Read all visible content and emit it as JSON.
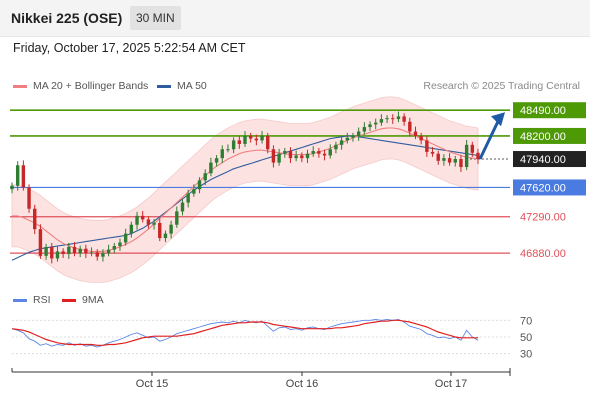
{
  "header": {
    "title": "Nikkei 225 (OSE)",
    "timeframe": "30 MIN"
  },
  "timestamp": "Friday, October 17, 2025 5:22:54 AM CET",
  "legend": {
    "ma20": "MA 20 + Bollinger Bands",
    "ma50": "MA 50",
    "copyright": "Research © 2025 Trading Central"
  },
  "rsi_legend": {
    "rsi": "RSI",
    "ma9": "9MA"
  },
  "colors": {
    "resistance": "#4e9a06",
    "current": "#222222",
    "support_blue": "#4a7be0",
    "support_red": "#e0505a",
    "bollinger_fill": "#fde2e2",
    "ma20": "#f08080",
    "ma50": "#2f5d9e",
    "candle_up": "#2e7d32",
    "candle_down": "#c62828",
    "arrow": "#1f5aa6"
  },
  "chart_data": [
    {
      "type": "candlestick",
      "x_ticks": [
        "Oct 15",
        "Oct 16",
        "Oct 17"
      ],
      "ylim": [
        46600,
        48650
      ],
      "levels": [
        {
          "value": 48490,
          "label": "48490.00",
          "kind": "resistance"
        },
        {
          "value": 48200,
          "label": "48200.00",
          "kind": "resistance"
        },
        {
          "value": 47940,
          "label": "47940.00",
          "kind": "current"
        },
        {
          "value": 47620,
          "label": "47620.00",
          "kind": "support_blue"
        },
        {
          "value": 47290,
          "label": "47290.00",
          "kind": "support_red"
        },
        {
          "value": 46880,
          "label": "46880.00",
          "kind": "support_red"
        }
      ],
      "close": [
        47640,
        47870,
        47620,
        47380,
        47150,
        46850,
        46950,
        46820,
        46900,
        46870,
        46950,
        46880,
        46930,
        46880,
        46890,
        46840,
        46880,
        46920,
        46960,
        47000,
        47100,
        47200,
        47300,
        47260,
        47200,
        47220,
        47050,
        47100,
        47200,
        47350,
        47450,
        47550,
        47600,
        47700,
        47780,
        47900,
        47950,
        48050,
        48050,
        48150,
        48110,
        48200,
        48170,
        48150,
        48200,
        48050,
        47900,
        48000,
        48030,
        47950,
        47980,
        47950,
        48000,
        48030,
        48000,
        47980,
        48050,
        48100,
        48150,
        48180,
        48200,
        48250,
        48300,
        48330,
        48350,
        48390,
        48400,
        48390,
        48420,
        48360,
        48250,
        48200,
        48150,
        48020,
        48000,
        47920,
        47950,
        47900,
        47940,
        47850,
        48100,
        48010,
        47940
      ],
      "ma20": [
        47300,
        47300,
        47280,
        47250,
        47220,
        47180,
        47130,
        47080,
        47030,
        46990,
        46960,
        46940,
        46920,
        46910,
        46900,
        46900,
        46900,
        46910,
        46930,
        46950,
        46980,
        47010,
        47050,
        47100,
        47150,
        47210,
        47270,
        47330,
        47390,
        47450,
        47510,
        47570,
        47630,
        47690,
        47750,
        47810,
        47860,
        47900,
        47940,
        47970,
        48000,
        48020,
        48030,
        48040,
        48040,
        48030,
        48020,
        48010,
        48000,
        47990,
        47990,
        47990,
        47990,
        48000,
        48020,
        48040,
        48060,
        48090,
        48120,
        48150,
        48180,
        48200,
        48220,
        48240,
        48260,
        48280,
        48290,
        48290,
        48280,
        48260,
        48230,
        48200,
        48170,
        48140,
        48110,
        48080,
        48050,
        48020,
        48000,
        47980,
        47960,
        47950,
        47940
      ],
      "ma50": [
        46800,
        46830,
        46860,
        46890,
        46910,
        46930,
        46940,
        46950,
        46960,
        46970,
        46980,
        46990,
        47000,
        47010,
        47020,
        47030,
        47040,
        47050,
        47060,
        47070,
        47080,
        47100,
        47130,
        47160,
        47200,
        47240,
        47290,
        47340,
        47390,
        47440,
        47490,
        47540,
        47590,
        47630,
        47670,
        47710,
        47740,
        47770,
        47800,
        47830,
        47850,
        47870,
        47890,
        47910,
        47930,
        47950,
        47970,
        47990,
        48010,
        48030,
        48050,
        48070,
        48090,
        48110,
        48130,
        48150,
        48170,
        48180,
        48190,
        48200,
        48200,
        48190,
        48180,
        48170,
        48160,
        48150,
        48140,
        48130,
        48120,
        48110,
        48100,
        48090,
        48080,
        48070,
        48060,
        48050,
        48040,
        48030,
        48020,
        48010,
        48000,
        47990,
        47980
      ],
      "bb_width": 350
    },
    {
      "type": "line",
      "series": [
        {
          "name": "RSI",
          "values": [
            60,
            58,
            55,
            48,
            45,
            40,
            42,
            39,
            41,
            40,
            43,
            40,
            42,
            39,
            40,
            38,
            40,
            43,
            45,
            47,
            50,
            53,
            55,
            52,
            49,
            50,
            45,
            47,
            50,
            54,
            56,
            58,
            60,
            62,
            64,
            66,
            67,
            68,
            67,
            69,
            67,
            70,
            68,
            67,
            69,
            63,
            57,
            61,
            62,
            59,
            60,
            58,
            61,
            62,
            60,
            59,
            62,
            64,
            66,
            67,
            68,
            69,
            70,
            70,
            71,
            70,
            71,
            70,
            71,
            68,
            63,
            61,
            59,
            54,
            52,
            49,
            50,
            48,
            50,
            46,
            58,
            50,
            46
          ]
        },
        {
          "name": "9MA",
          "values": [
            60,
            59,
            58,
            56,
            53,
            50,
            47,
            45,
            43,
            42,
            41,
            41,
            41,
            41,
            41,
            40,
            40,
            41,
            41,
            42,
            43,
            45,
            47,
            49,
            50,
            51,
            51,
            51,
            51,
            51,
            52,
            53,
            54,
            56,
            58,
            60,
            62,
            64,
            65,
            66,
            67,
            67,
            68,
            68,
            68,
            67,
            65,
            64,
            63,
            62,
            61,
            60,
            60,
            60,
            60,
            60,
            60,
            61,
            61,
            62,
            63,
            64,
            66,
            67,
            68,
            69,
            69,
            70,
            70,
            69,
            68,
            66,
            64,
            62,
            59,
            56,
            54,
            52,
            50,
            49,
            49,
            49,
            49
          ]
        }
      ],
      "ylim": [
        20,
        80
      ],
      "y_ticks": [
        70,
        50,
        30
      ]
    }
  ]
}
